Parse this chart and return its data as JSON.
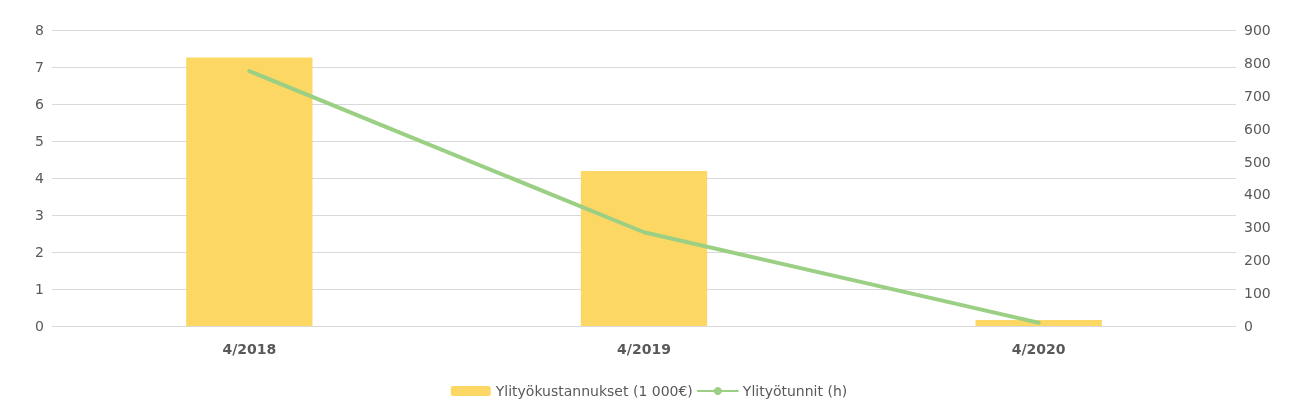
{
  "chart_data": {
    "type": "bar",
    "categories": [
      "4/2018",
      "4/2019",
      "4/2020"
    ],
    "series": [
      {
        "name": "Ylityökustannukset (1 000€)",
        "color": "#fdd764",
        "values": [
          7.26,
          4.19,
          0.16
        ]
      },
      {
        "name": "Ylityötunnit (h)",
        "type": "line",
        "axis": "y2",
        "color": "#9bcf84",
        "values": [
          775,
          285,
          10
        ]
      }
    ],
    "ylim": [
      0,
      8
    ],
    "yticks": [
      0,
      1,
      2,
      3,
      4,
      5,
      6,
      7,
      8
    ],
    "y2lim": [
      0,
      900
    ],
    "y2ticks": [
      0,
      100,
      200,
      300,
      400,
      500,
      600,
      700,
      800,
      900
    ],
    "grid": "y",
    "legend": "bottom",
    "marker": "none"
  }
}
